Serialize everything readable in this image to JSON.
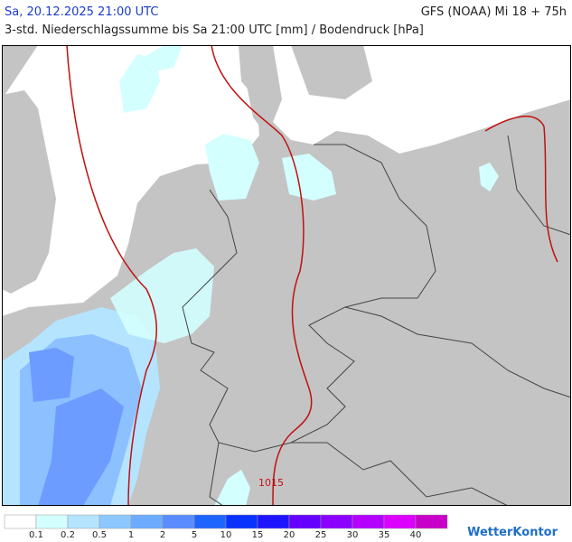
{
  "header": {
    "date": "Sa, 20.12.2025 21:00 UTC",
    "model": "GFS (NOAA) Mi 18 + 75h",
    "subtitle": "3-std. Niederschlagssumme bis Sa 21:00 UTC [mm] / Bodendruck [hPa]"
  },
  "map": {
    "isobar_label": "1015"
  },
  "legend": {
    "colors": [
      "#ffffff",
      "#d4ffff",
      "#b4e4ff",
      "#8cc8ff",
      "#6cacff",
      "#5a8cff",
      "#1e64ff",
      "#0a32ff",
      "#1e14ff",
      "#6400ff",
      "#8c00ff",
      "#b400ff",
      "#dc00ff",
      "#c800c8"
    ],
    "labels": [
      0.1,
      0.2,
      0.5,
      1,
      2,
      5,
      10,
      15,
      20,
      25,
      30,
      35,
      40
    ]
  },
  "brand": "WetterKontor"
}
